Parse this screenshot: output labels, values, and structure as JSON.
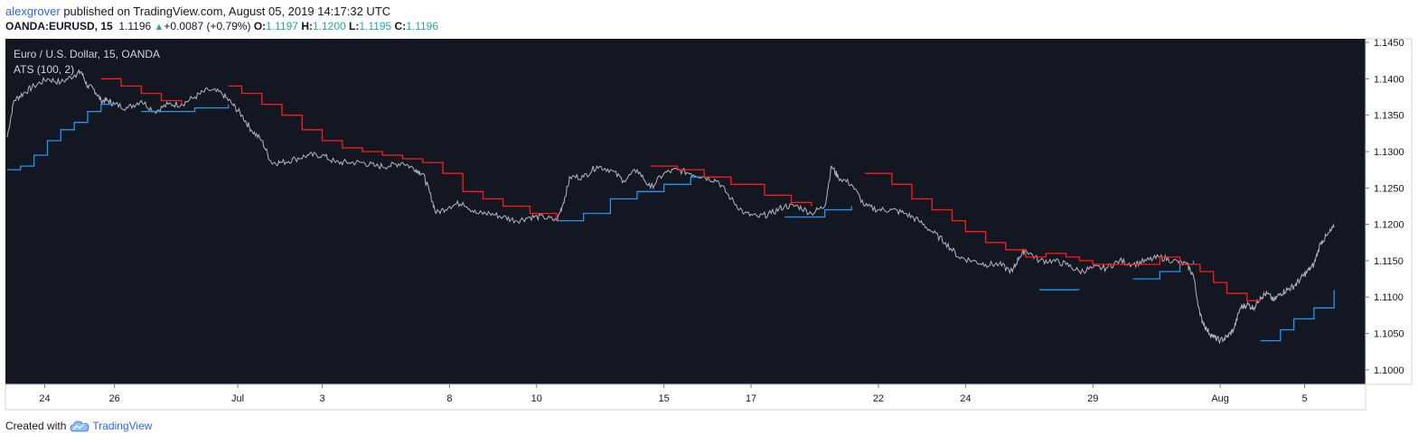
{
  "header": {
    "user": "alexgrover",
    "published_text": " published on TradingView.com, August 05, 2019 14:17:32 UTC",
    "symbol": "OANDA:EURUSD, 15",
    "last": "1.1196",
    "change": "+0.0087 (+0.79%)",
    "o_label": "O:",
    "o": "1.1197",
    "h_label": "H:",
    "h": "1.1200",
    "l_label": "L:",
    "l": "1.1195",
    "c_label": "C:",
    "c": "1.1196"
  },
  "footer": {
    "created_with": "Created with",
    "brand": "TradingView",
    "icon": "tradingview-cloud-icon"
  },
  "colors": {
    "background": "#131722",
    "price": "#b2b5be",
    "ats_down": "#ff1a1a",
    "ats_up": "#2196f3",
    "up_text": "#22ab94"
  },
  "chart_data": {
    "type": "line",
    "title": "Euro / U.S. Dollar, 15, OANDA",
    "indicator": "ATS (100, 2)",
    "ylim": [
      1.098,
      1.1455
    ],
    "y_ticks": [
      "1.1450",
      "1.1400",
      "1.1350",
      "1.1300",
      "1.1250",
      "1.1200",
      "1.1150",
      "1.1100",
      "1.1050",
      "1.1000"
    ],
    "y_tick_values": [
      1.145,
      1.14,
      1.135,
      1.13,
      1.125,
      1.12,
      1.115,
      1.11,
      1.105,
      1.1
    ],
    "x_ticks": [
      {
        "label": "24",
        "t": 0.028
      },
      {
        "label": "26",
        "t": 0.08
      },
      {
        "label": "Jul",
        "t": 0.172
      },
      {
        "label": "3",
        "t": 0.235
      },
      {
        "label": "8",
        "t": 0.33
      },
      {
        "label": "10",
        "t": 0.395
      },
      {
        "label": "15",
        "t": 0.49
      },
      {
        "label": "17",
        "t": 0.555
      },
      {
        "label": "22",
        "t": 0.65
      },
      {
        "label": "24",
        "t": 0.715
      },
      {
        "label": "29",
        "t": 0.81
      },
      {
        "label": "Aug",
        "t": 0.905
      },
      {
        "label": "5",
        "t": 0.968
      }
    ],
    "price": [
      [
        0,
        1.132
      ],
      [
        0.005,
        1.137
      ],
      [
        0.012,
        1.138
      ],
      [
        0.02,
        1.139
      ],
      [
        0.03,
        1.14
      ],
      [
        0.04,
        1.1395
      ],
      [
        0.05,
        1.1405
      ],
      [
        0.055,
        1.141
      ],
      [
        0.06,
        1.139
      ],
      [
        0.065,
        1.1385
      ],
      [
        0.07,
        1.137
      ],
      [
        0.075,
        1.137
      ],
      [
        0.08,
        1.1365
      ],
      [
        0.09,
        1.136
      ],
      [
        0.1,
        1.137
      ],
      [
        0.11,
        1.1355
      ],
      [
        0.12,
        1.1365
      ],
      [
        0.13,
        1.1365
      ],
      [
        0.14,
        1.1375
      ],
      [
        0.15,
        1.1385
      ],
      [
        0.16,
        1.138
      ],
      [
        0.168,
        1.1365
      ],
      [
        0.175,
        1.135
      ],
      [
        0.182,
        1.133
      ],
      [
        0.19,
        1.1315
      ],
      [
        0.197,
        1.1285
      ],
      [
        0.205,
        1.1285
      ],
      [
        0.215,
        1.129
      ],
      [
        0.225,
        1.1295
      ],
      [
        0.235,
        1.1295
      ],
      [
        0.245,
        1.1285
      ],
      [
        0.255,
        1.1285
      ],
      [
        0.265,
        1.1285
      ],
      [
        0.275,
        1.128
      ],
      [
        0.285,
        1.128
      ],
      [
        0.295,
        1.1285
      ],
      [
        0.305,
        1.1275
      ],
      [
        0.31,
        1.127
      ],
      [
        0.315,
        1.1245
      ],
      [
        0.32,
        1.1215
      ],
      [
        0.33,
        1.1225
      ],
      [
        0.34,
        1.123
      ],
      [
        0.35,
        1.1215
      ],
      [
        0.36,
        1.1215
      ],
      [
        0.37,
        1.121
      ],
      [
        0.38,
        1.1205
      ],
      [
        0.39,
        1.121
      ],
      [
        0.4,
        1.121
      ],
      [
        0.41,
        1.1205
      ],
      [
        0.415,
        1.123
      ],
      [
        0.42,
        1.1265
      ],
      [
        0.43,
        1.1265
      ],
      [
        0.44,
        1.128
      ],
      [
        0.45,
        1.1275
      ],
      [
        0.46,
        1.126
      ],
      [
        0.47,
        1.1275
      ],
      [
        0.48,
        1.125
      ],
      [
        0.49,
        1.127
      ],
      [
        0.5,
        1.1275
      ],
      [
        0.51,
        1.127
      ],
      [
        0.52,
        1.1265
      ],
      [
        0.53,
        1.126
      ],
      [
        0.54,
        1.1235
      ],
      [
        0.55,
        1.1215
      ],
      [
        0.56,
        1.121
      ],
      [
        0.57,
        1.1215
      ],
      [
        0.58,
        1.1225
      ],
      [
        0.59,
        1.1225
      ],
      [
        0.6,
        1.1215
      ],
      [
        0.61,
        1.1225
      ],
      [
        0.615,
        1.128
      ],
      [
        0.62,
        1.1265
      ],
      [
        0.63,
        1.1255
      ],
      [
        0.64,
        1.1225
      ],
      [
        0.65,
        1.122
      ],
      [
        0.66,
        1.122
      ],
      [
        0.67,
        1.1215
      ],
      [
        0.68,
        1.1205
      ],
      [
        0.69,
        1.119
      ],
      [
        0.7,
        1.1175
      ],
      [
        0.71,
        1.1155
      ],
      [
        0.72,
        1.115
      ],
      [
        0.73,
        1.1145
      ],
      [
        0.74,
        1.1145
      ],
      [
        0.75,
        1.1135
      ],
      [
        0.755,
        1.1155
      ],
      [
        0.76,
        1.1165
      ],
      [
        0.77,
        1.115
      ],
      [
        0.78,
        1.115
      ],
      [
        0.79,
        1.1145
      ],
      [
        0.8,
        1.1135
      ],
      [
        0.81,
        1.114
      ],
      [
        0.82,
        1.114
      ],
      [
        0.83,
        1.115
      ],
      [
        0.84,
        1.1145
      ],
      [
        0.85,
        1.115
      ],
      [
        0.86,
        1.1155
      ],
      [
        0.87,
        1.115
      ],
      [
        0.88,
        1.1145
      ],
      [
        0.885,
        1.113
      ],
      [
        0.89,
        1.1075
      ],
      [
        0.895,
        1.1055
      ],
      [
        0.9,
        1.1045
      ],
      [
        0.905,
        1.104
      ],
      [
        0.91,
        1.1045
      ],
      [
        0.915,
        1.1055
      ],
      [
        0.92,
        1.1085
      ],
      [
        0.925,
        1.109
      ],
      [
        0.93,
        1.1085
      ],
      [
        0.935,
        1.11
      ],
      [
        0.94,
        1.1105
      ],
      [
        0.945,
        1.1095
      ],
      [
        0.95,
        1.1105
      ],
      [
        0.955,
        1.111
      ],
      [
        0.96,
        1.1115
      ],
      [
        0.965,
        1.1125
      ],
      [
        0.97,
        1.1135
      ],
      [
        0.975,
        1.1145
      ],
      [
        0.98,
        1.1175
      ],
      [
        0.985,
        1.1185
      ],
      [
        0.99,
        1.1196
      ]
    ],
    "ats_up": [
      [
        [
          0,
          1.1275
        ],
        [
          0.01,
          1.128
        ],
        [
          0.02,
          1.1295
        ],
        [
          0.03,
          1.1315
        ],
        [
          0.04,
          1.133
        ],
        [
          0.05,
          1.134
        ],
        [
          0.06,
          1.1355
        ],
        [
          0.07,
          1.1365
        ],
        [
          0.08,
          1.1365
        ]
      ],
      [
        [
          0.1,
          1.1355
        ],
        [
          0.12,
          1.1355
        ],
        [
          0.14,
          1.136
        ],
        [
          0.165,
          1.1365
        ]
      ],
      [
        [
          0.41,
          1.1205
        ],
        [
          0.43,
          1.1215
        ],
        [
          0.45,
          1.1235
        ],
        [
          0.47,
          1.1245
        ],
        [
          0.49,
          1.1255
        ],
        [
          0.51,
          1.1265
        ],
        [
          0.53,
          1.1265
        ]
      ],
      [
        [
          0.58,
          1.121
        ],
        [
          0.6,
          1.121
        ],
        [
          0.61,
          1.122
        ],
        [
          0.63,
          1.1225
        ]
      ],
      [
        [
          0.77,
          1.111
        ],
        [
          0.8,
          1.111
        ]
      ],
      [
        [
          0.84,
          1.1125
        ],
        [
          0.86,
          1.1135
        ],
        [
          0.875,
          1.1145
        ],
        [
          0.885,
          1.115
        ]
      ],
      [
        [
          0.935,
          1.104
        ],
        [
          0.95,
          1.1055
        ],
        [
          0.96,
          1.107
        ],
        [
          0.975,
          1.1085
        ],
        [
          0.99,
          1.111
        ]
      ]
    ],
    "ats_down": [
      [
        [
          0.07,
          1.14
        ],
        [
          0.085,
          1.139
        ],
        [
          0.1,
          1.138
        ],
        [
          0.115,
          1.137
        ],
        [
          0.13,
          1.1365
        ]
      ],
      [
        [
          0.165,
          1.139
        ],
        [
          0.175,
          1.138
        ],
        [
          0.19,
          1.1365
        ],
        [
          0.205,
          1.135
        ],
        [
          0.22,
          1.133
        ],
        [
          0.235,
          1.1315
        ],
        [
          0.25,
          1.1305
        ],
        [
          0.265,
          1.13
        ],
        [
          0.28,
          1.1295
        ],
        [
          0.295,
          1.129
        ],
        [
          0.31,
          1.1285
        ],
        [
          0.325,
          1.127
        ],
        [
          0.34,
          1.1245
        ],
        [
          0.355,
          1.1235
        ],
        [
          0.37,
          1.1225
        ],
        [
          0.39,
          1.1215
        ],
        [
          0.41,
          1.1205
        ]
      ],
      [
        [
          0.48,
          1.128
        ],
        [
          0.5,
          1.1275
        ],
        [
          0.52,
          1.1265
        ],
        [
          0.54,
          1.1255
        ],
        [
          0.565,
          1.124
        ],
        [
          0.585,
          1.123
        ],
        [
          0.6,
          1.1225
        ]
      ],
      [
        [
          0.64,
          1.127
        ],
        [
          0.66,
          1.1255
        ],
        [
          0.675,
          1.1235
        ],
        [
          0.69,
          1.122
        ],
        [
          0.705,
          1.1205
        ],
        [
          0.715,
          1.119
        ],
        [
          0.73,
          1.1175
        ],
        [
          0.745,
          1.1165
        ],
        [
          0.76,
          1.1155
        ],
        [
          0.775,
          1.116
        ],
        [
          0.79,
          1.1155
        ],
        [
          0.8,
          1.115
        ],
        [
          0.81,
          1.1145
        ],
        [
          0.82,
          1.1145
        ],
        [
          0.83,
          1.1145
        ],
        [
          0.845,
          1.1145
        ],
        [
          0.86,
          1.1155
        ],
        [
          0.875,
          1.1145
        ],
        [
          0.89,
          1.1135
        ],
        [
          0.9,
          1.112
        ],
        [
          0.91,
          1.1105
        ],
        [
          0.925,
          1.1095
        ],
        [
          0.935,
          1.1095
        ]
      ]
    ]
  }
}
